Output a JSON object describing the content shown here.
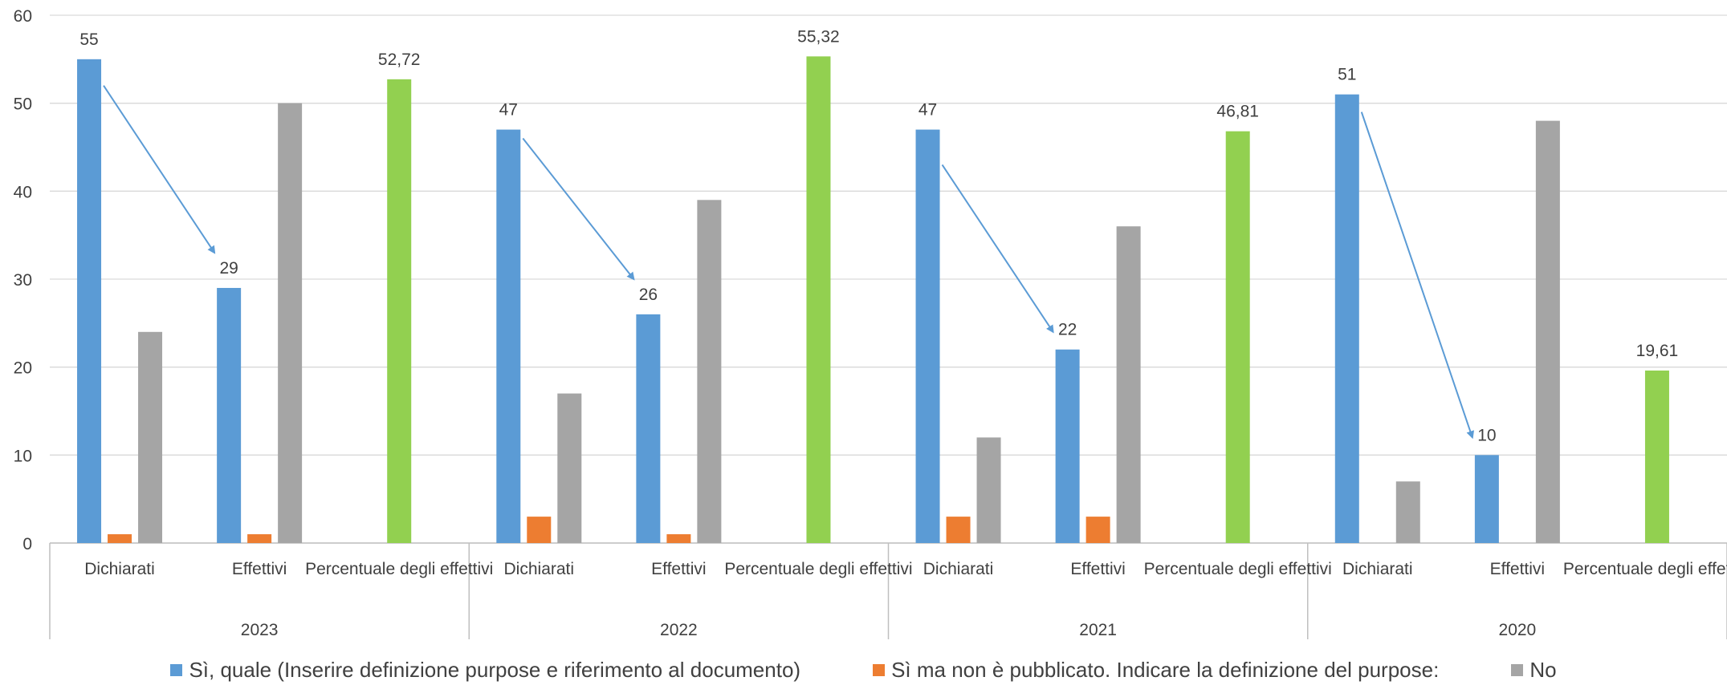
{
  "chart_data": {
    "type": "bar",
    "ylim": [
      0,
      60
    ],
    "yticks": [
      0,
      10,
      20,
      30,
      40,
      50,
      60
    ],
    "grid": true,
    "legend_position": "bottom",
    "groups": [
      {
        "year": "2023",
        "categories": [
          {
            "label": "Dichiarati",
            "bars": [
              {
                "series": 0,
                "value": 55
              },
              {
                "series": 1,
                "value": 1
              },
              {
                "series": 2,
                "value": 24
              }
            ],
            "data_label": "55"
          },
          {
            "label": "Effettivi",
            "bars": [
              {
                "series": 0,
                "value": 29
              },
              {
                "series": 1,
                "value": 1
              },
              {
                "series": 2,
                "value": 50
              }
            ],
            "data_label": "29"
          },
          {
            "label": "Percentuale degli effettivi",
            "bars": [
              {
                "series": 3,
                "value": 52.72
              }
            ],
            "data_label": "52,72"
          }
        ]
      },
      {
        "year": "2022",
        "categories": [
          {
            "label": "Dichiarati",
            "bars": [
              {
                "series": 0,
                "value": 47
              },
              {
                "series": 1,
                "value": 3
              },
              {
                "series": 2,
                "value": 17
              }
            ],
            "data_label": "47"
          },
          {
            "label": "Effettivi",
            "bars": [
              {
                "series": 0,
                "value": 26
              },
              {
                "series": 1,
                "value": 1
              },
              {
                "series": 2,
                "value": 39
              }
            ],
            "data_label": "26"
          },
          {
            "label": "Percentuale degli effettivi",
            "bars": [
              {
                "series": 3,
                "value": 55.32
              }
            ],
            "data_label": "55,32"
          }
        ]
      },
      {
        "year": "2021",
        "categories": [
          {
            "label": "Dichiarati",
            "bars": [
              {
                "series": 0,
                "value": 47
              },
              {
                "series": 1,
                "value": 3
              },
              {
                "series": 2,
                "value": 12
              }
            ],
            "data_label": "47"
          },
          {
            "label": "Effettivi",
            "bars": [
              {
                "series": 0,
                "value": 22
              },
              {
                "series": 1,
                "value": 3
              },
              {
                "series": 2,
                "value": 36
              }
            ],
            "data_label": "22"
          },
          {
            "label": "Percentuale degli effettivi",
            "bars": [
              {
                "series": 3,
                "value": 46.81
              }
            ],
            "data_label": "46,81"
          }
        ]
      },
      {
        "year": "2020",
        "categories": [
          {
            "label": "Dichiarati",
            "bars": [
              {
                "series": 0,
                "value": 51
              },
              {
                "series": 1,
                "value": 0
              },
              {
                "series": 2,
                "value": 7
              }
            ],
            "data_label": "51"
          },
          {
            "label": "Effettivi",
            "bars": [
              {
                "series": 0,
                "value": 10
              },
              {
                "series": 1,
                "value": 0
              },
              {
                "series": 2,
                "value": 48
              }
            ],
            "data_label": "10"
          },
          {
            "label": "Percentuale degli effettivi",
            "bars": [
              {
                "series": 3,
                "value": 19.61
              }
            ],
            "data_label": "19,61"
          }
        ]
      }
    ],
    "series": [
      {
        "name": "Sì, quale (Inserire definizione purpose e riferimento al documento)",
        "color": "#5b9bd5",
        "in_legend": true
      },
      {
        "name": "Sì ma non è pubblicato. Indicare la definizione del purpose:",
        "color": "#ed7d31",
        "in_legend": true
      },
      {
        "name": "No",
        "color": "#a5a5a5",
        "in_legend": true
      },
      {
        "name": "",
        "color": "#92d050",
        "in_legend": false
      }
    ],
    "annotations": [
      {
        "type": "arrow",
        "group": 0,
        "from_value": 52,
        "to_value": 33,
        "color": "#5b9bd5"
      },
      {
        "type": "arrow",
        "group": 1,
        "from_value": 46,
        "to_value": 30,
        "color": "#5b9bd5"
      },
      {
        "type": "arrow",
        "group": 2,
        "from_value": 43,
        "to_value": 24,
        "color": "#5b9bd5"
      },
      {
        "type": "arrow",
        "group": 3,
        "from_value": 49,
        "to_value": 12,
        "color": "#5b9bd5"
      }
    ]
  }
}
